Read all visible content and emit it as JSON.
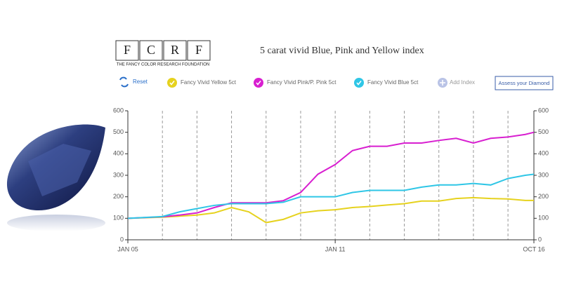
{
  "logo": {
    "letters": [
      "F",
      "C",
      "R",
      "F"
    ],
    "subtitle": "THE FANCY COLOR RESEARCH FOUNDATION"
  },
  "ui": {
    "reset": "Reset",
    "add_index": "Add Index",
    "button": "Assess your Diamond"
  },
  "chart_data": {
    "type": "line",
    "title": "5 carat vivid Blue, Pink and Yellow index",
    "x": [
      2005,
      2006,
      2006.5,
      2007,
      2007.5,
      2008,
      2008.5,
      2009,
      2009.5,
      2010,
      2010.5,
      2011,
      2011.5,
      2012,
      2012.5,
      2013,
      2013.5,
      2014,
      2014.5,
      2015,
      2015.5,
      2016,
      2016.5,
      2016.75
    ],
    "series": [
      {
        "name": "Fancy Vivid Yellow 5ct",
        "color": "#e6d21e",
        "values": [
          100,
          105,
          110,
          115,
          125,
          150,
          130,
          80,
          95,
          125,
          135,
          140,
          150,
          155,
          162,
          168,
          180,
          180,
          192,
          196,
          192,
          190,
          183,
          183
        ]
      },
      {
        "name": "Fancy Vivid Pink/P. Pink 5ct",
        "color": "#d81fd0",
        "values": [
          100,
          107,
          115,
          125,
          150,
          172,
          172,
          172,
          182,
          220,
          305,
          350,
          415,
          435,
          435,
          450,
          450,
          462,
          472,
          450,
          472,
          478,
          490,
          500
        ]
      },
      {
        "name": "Fancy Vivid Blue 5ct",
        "color": "#2fc6e6",
        "values": [
          100,
          108,
          130,
          145,
          160,
          168,
          168,
          168,
          175,
          200,
          200,
          200,
          220,
          230,
          230,
          230,
          245,
          255,
          255,
          262,
          255,
          285,
          300,
          305
        ]
      }
    ],
    "xlim": [
      2005,
      2016.75
    ],
    "xticks": [
      {
        "value": 2005,
        "label": "JAN 05"
      },
      {
        "value": 2011,
        "label": "JAN 11"
      },
      {
        "value": 2016.75,
        "label": "OCT 16"
      }
    ],
    "xgrid": [
      2006,
      2007,
      2008,
      2009,
      2010,
      2011,
      2012,
      2013,
      2014,
      2015,
      2016
    ],
    "ylim": [
      0,
      600
    ],
    "yticks": [
      0,
      100,
      200,
      300,
      400,
      500,
      600
    ],
    "y2lim": [
      0,
      600
    ],
    "y2ticks": [
      0,
      100,
      200,
      300,
      400,
      500,
      600
    ]
  }
}
